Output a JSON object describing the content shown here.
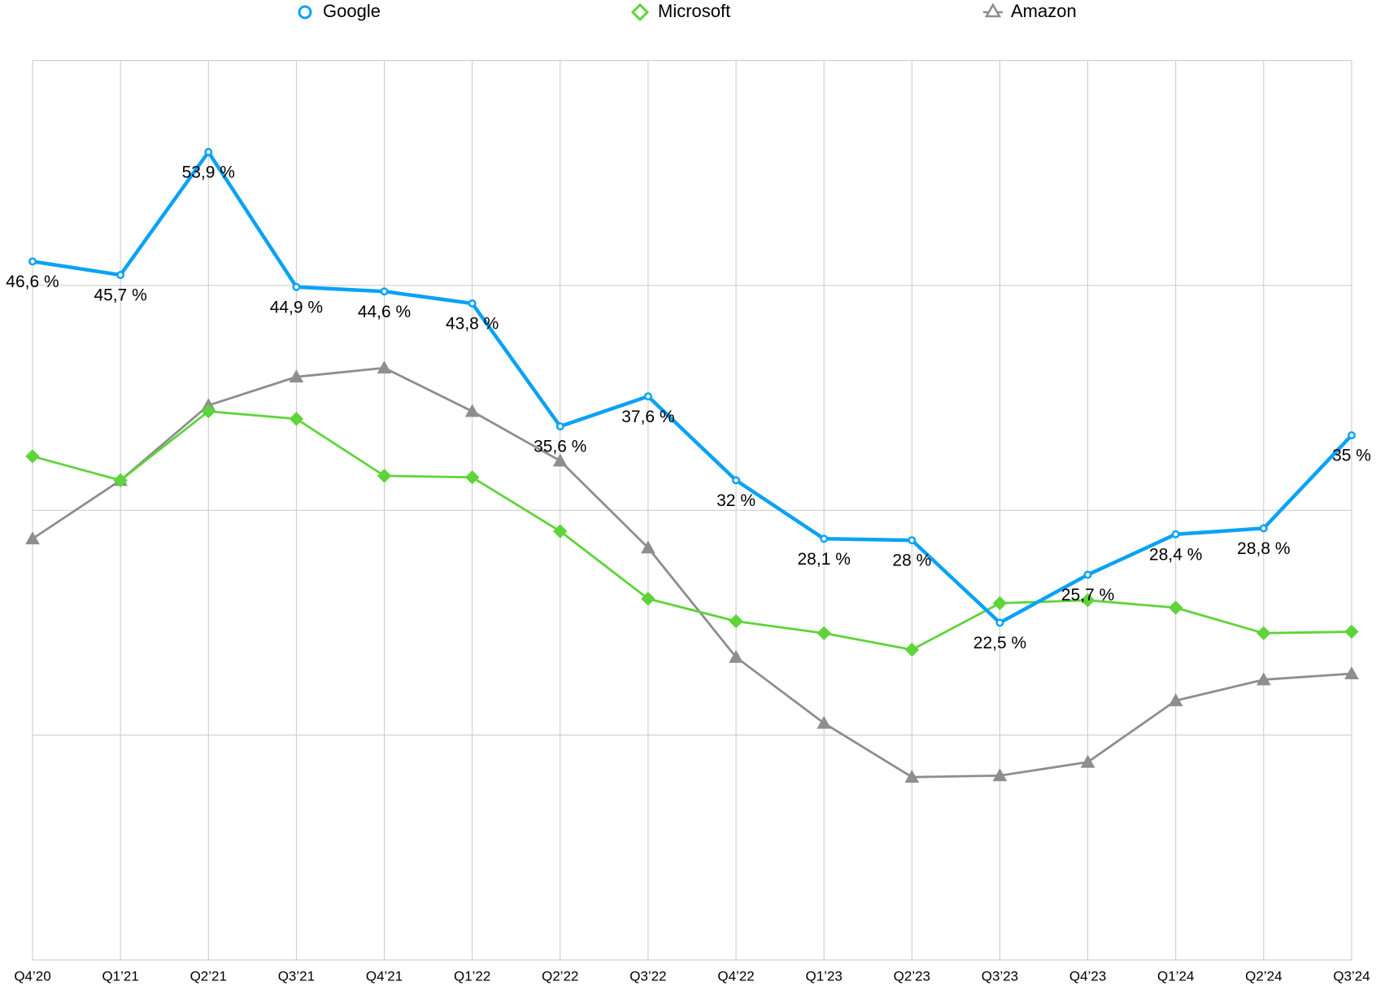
{
  "chart_data": {
    "type": "line",
    "categories": [
      "Q4’20",
      "Q1’21",
      "Q2’21",
      "Q3’21",
      "Q4’21",
      "Q1’22",
      "Q2’22",
      "Q3’22",
      "Q4’22",
      "Q1’23",
      "Q2’23",
      "Q3’23",
      "Q4’23",
      "Q1’24",
      "Q2’24",
      "Q3’24"
    ],
    "ylim": [
      0,
      60
    ],
    "yticks": [
      0,
      15,
      30,
      45,
      60
    ],
    "show_ytick_labels": false,
    "grid": true,
    "legend": "top",
    "series": [
      {
        "name": "Google",
        "color": "#0aa2f5",
        "marker": "circle",
        "values": [
          46.6,
          45.7,
          53.9,
          44.9,
          44.6,
          43.8,
          35.6,
          37.6,
          32,
          28.1,
          28,
          22.5,
          25.7,
          28.4,
          28.8,
          35
        ],
        "value_labels": [
          "46,6 %",
          "45,7 %",
          "53,9 %",
          "44,9 %",
          "44,6 %",
          "43,8 %",
          "35,6 %",
          "37,6 %",
          "32 %",
          "28,1 %",
          "28 %",
          "22,5 %",
          "25,7 %",
          "28,4 %",
          "28,8 %",
          "35 %"
        ]
      },
      {
        "name": "Microsoft",
        "color": "#5fd43a",
        "marker": "diamond",
        "values": [
          33.6,
          32.0,
          36.6,
          36.1,
          32.3,
          32.2,
          28.6,
          24.1,
          22.6,
          21.8,
          20.7,
          23.8,
          24.0,
          23.5,
          21.8,
          21.9
        ]
      },
      {
        "name": "Amazon",
        "color": "#8e8e8e",
        "marker": "triangle",
        "values": [
          28.1,
          32.0,
          37.0,
          38.9,
          39.5,
          36.6,
          33.3,
          27.5,
          20.2,
          15.8,
          12.2,
          12.3,
          13.2,
          17.3,
          18.7,
          19.1
        ]
      }
    ]
  }
}
